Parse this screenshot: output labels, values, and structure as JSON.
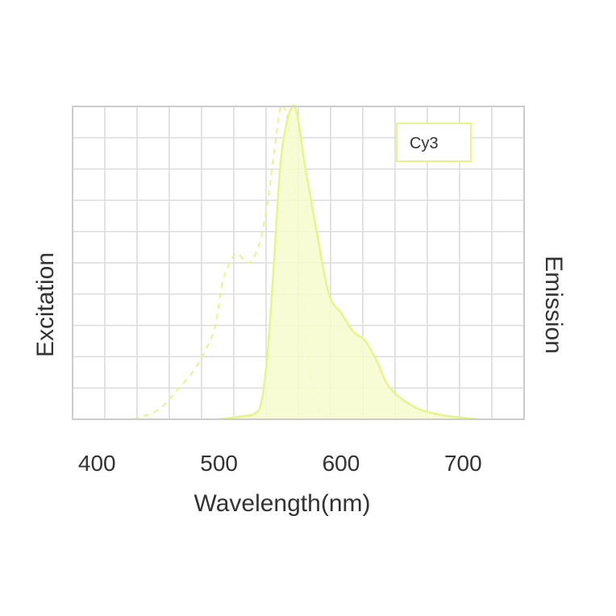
{
  "chart_data": {
    "type": "area",
    "xlabel": "Wavelength(nm)",
    "ylabel_left": "Excitation",
    "ylabel_right": "Emission",
    "xlim": [
      380,
      750
    ],
    "ylim": [
      0,
      100
    ],
    "x_ticks": [
      400,
      500,
      600,
      700
    ],
    "grid": true,
    "legend_position": "top-right",
    "colors": {
      "curve": "#e6f58a",
      "fill": "#f6fccd",
      "grid": "#dcdcdc",
      "frame": "#cccccc",
      "text": "#333333"
    },
    "series": [
      {
        "name": "Cy3",
        "kind": "excitation",
        "style": "dashed",
        "x": [
          430,
          450,
          465,
          480,
          490,
          497,
          503,
          510,
          515,
          520,
          525,
          530,
          535,
          540,
          545,
          550,
          553,
          556,
          560,
          565,
          570,
          575,
          580,
          590
        ],
        "y": [
          0,
          3,
          9,
          16,
          23,
          30,
          44,
          51,
          53,
          51,
          50,
          53,
          59,
          70,
          85,
          99,
          100,
          96,
          82,
          60,
          35,
          15,
          5,
          0
        ]
      },
      {
        "name": "Cy3",
        "kind": "emission",
        "style": "solid-filled",
        "x": [
          500,
          520,
          530,
          535,
          540,
          545,
          550,
          555,
          560,
          563,
          566,
          570,
          575,
          580,
          590,
          600,
          610,
          620,
          630,
          640,
          660,
          680,
          700,
          712
        ],
        "y": [
          0,
          1,
          2,
          6,
          22,
          50,
          80,
          94,
          100,
          99,
          93,
          82,
          71,
          60,
          40,
          34,
          28,
          25,
          18,
          10,
          4,
          1.5,
          0.5,
          0
        ]
      }
    ]
  }
}
